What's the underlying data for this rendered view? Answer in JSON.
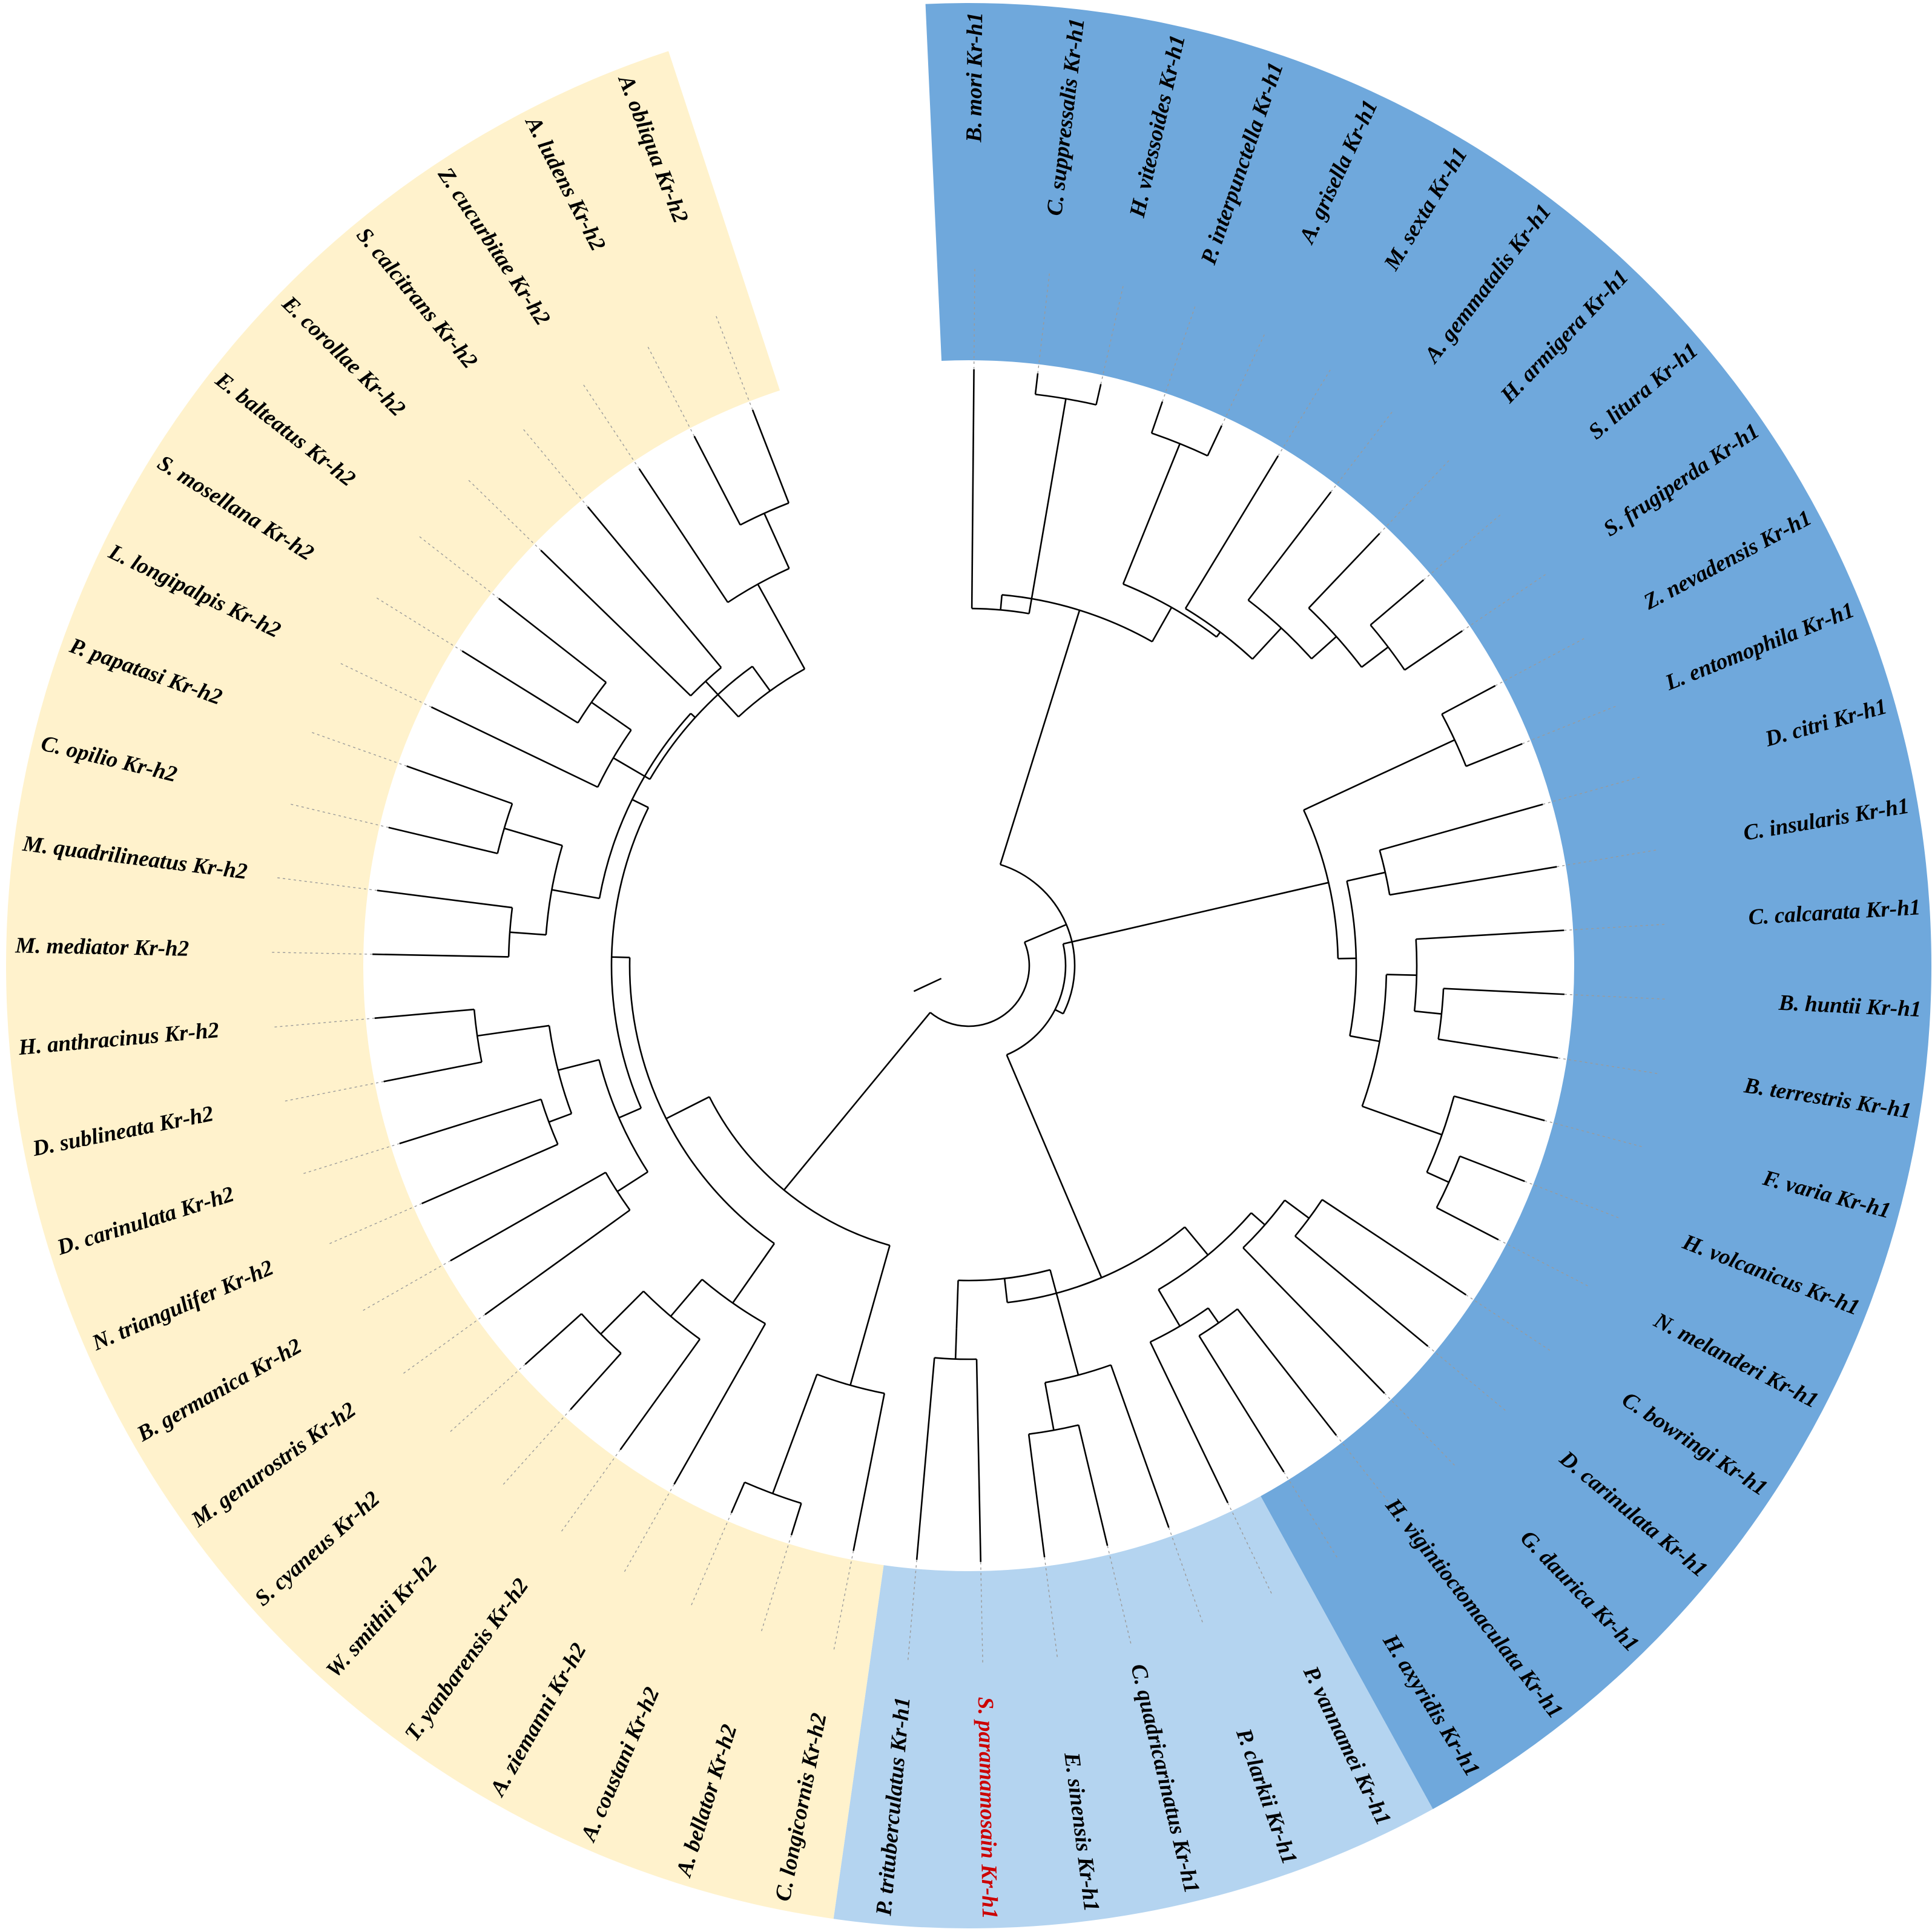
{
  "colors": {
    "kr_h1_insect": "#6fa8dc",
    "kr_h1_crustacean": "#b4d4f0",
    "kr_h2": "#fff2cc",
    "highlight": "#cc0000"
  },
  "clades": [
    {
      "id": "kr-h1-insect",
      "color_key": "kr_h1_insect"
    },
    {
      "id": "kr-h1-crustacean",
      "color_key": "kr_h1_crustacean"
    },
    {
      "id": "kr-h2",
      "color_key": "kr_h2"
    }
  ],
  "leaves": [
    "B. mori Kr-h1",
    "C. suppressalis Kr-h1",
    "H. vitessoides Kr-h1",
    "P. interpunctella Kr-h1",
    "A. grisella Kr-h1",
    "M. sexta Kr-h1",
    "A. gemmatalis Kr-h1",
    "H. armigera Kr-h1",
    "S. litura Kr-h1",
    "S. frugiperda Kr-h1",
    "Z. nevadensis Kr-h1",
    "L. entomophila Kr-h1",
    "D. citri Kr-h1",
    "C. insularis Kr-h1",
    "C. calcarata Kr-h1",
    "B. huntii Kr-h1",
    "B. terrestris Kr-h1",
    "F. varia Kr-h1",
    "H. volcanicus Kr-h1",
    "N. melanderi Kr-h1",
    "C. bowringi Kr-h1",
    "D. carinulata Kr-h1",
    "G. daurica Kr-h1",
    "H. vigintioctomaculata Kr-h1",
    "H. axyridis Kr-h1",
    "P. vannamei Kr-h1",
    "P. clarkii Kr-h1",
    "C. quadricarinatus Kr-h1",
    "E. sinensis Kr-h1",
    "S. paramamosain Kr-h1",
    "P. trituberculatus Kr-h1",
    "C. longicornis Kr-h2",
    "A. bellator Kr-h2",
    "A. coustani Kr-h2",
    "A. ziemanni Kr-h2",
    "T. yanbarensis Kr-h2",
    "W. smithii Kr-h2",
    "S. cyaneus Kr-h2",
    "M. genurostris Kr-h2",
    "B. germanica Kr-h2",
    "N. triangulifer Kr-h2",
    "D. carinulata Kr-h2",
    "D. sublineata Kr-h2",
    "H. anthracinus Kr-h2",
    "M. mediator Kr-h2",
    "M. quadrilineatus Kr-h2",
    "C. opilio Kr-h2",
    "P. papatasi Kr-h2",
    "L. longipalpis Kr-h2",
    "S. mosellana Kr-h2",
    "E. balteatus Kr-h2",
    "E. corollae Kr-h2",
    "S. calcitrans Kr-h2",
    "Z. cucurbitae Kr-h2",
    "A. ludens Kr-h2",
    "A. obliqua Kr-h2"
  ],
  "highlighted_leaf": "S. paramamosain Kr-h1"
}
